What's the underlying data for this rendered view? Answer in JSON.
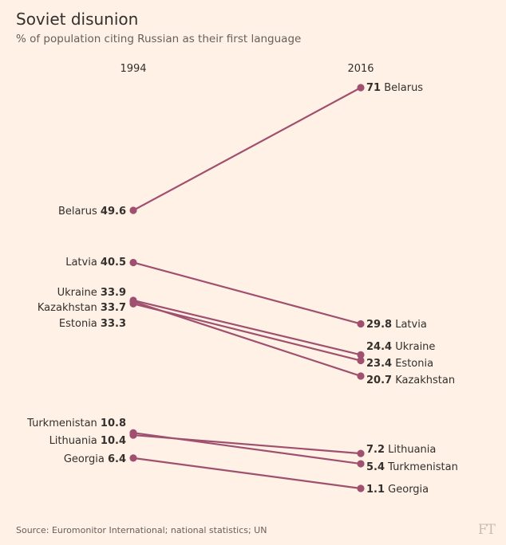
{
  "title": "Soviet disunion",
  "subtitle": "% of population citing Russian as their first language",
  "source": "Source: Euromonitor International; national statistics; UN",
  "logo": "FT",
  "colors": {
    "background": "#fff1e5",
    "line": "#a0506f",
    "text": "#33302e"
  },
  "chart_data": {
    "type": "line",
    "subtype": "slope",
    "x": [
      "1994",
      "2016"
    ],
    "series": [
      {
        "name": "Belarus",
        "values": [
          49.6,
          71
        ]
      },
      {
        "name": "Latvia",
        "values": [
          40.5,
          29.8
        ]
      },
      {
        "name": "Ukraine",
        "values": [
          33.9,
          24.4
        ]
      },
      {
        "name": "Kazakhstan",
        "values": [
          33.7,
          20.7
        ]
      },
      {
        "name": "Estonia",
        "values": [
          33.3,
          23.4
        ]
      },
      {
        "name": "Turkmenistan",
        "values": [
          10.8,
          5.4
        ]
      },
      {
        "name": "Lithuania",
        "values": [
          10.4,
          7.2
        ]
      },
      {
        "name": "Georgia",
        "values": [
          6.4,
          1.1
        ]
      }
    ],
    "left_labels": [
      {
        "series": "Belarus",
        "text": "Belarus",
        "value": "49.6"
      },
      {
        "series": "Latvia",
        "text": "Latvia",
        "value": "40.5"
      },
      {
        "series": "Ukraine",
        "text": "Ukraine",
        "value": "33.9"
      },
      {
        "series": "Kazakhstan",
        "text": "Kazakhstan",
        "value": "33.7"
      },
      {
        "series": "Estonia",
        "text": "Estonia",
        "value": "33.3"
      },
      {
        "series": "Turkmenistan",
        "text": "Turkmenistan",
        "value": "10.8"
      },
      {
        "series": "Lithuania",
        "text": "Lithuania",
        "value": "10.4"
      },
      {
        "series": "Georgia",
        "text": "Georgia",
        "value": "6.4"
      }
    ],
    "right_labels": [
      {
        "series": "Belarus",
        "text": "Belarus",
        "value": "71"
      },
      {
        "series": "Latvia",
        "text": "Latvia",
        "value": "29.8"
      },
      {
        "series": "Ukraine",
        "text": "Ukraine",
        "value": "24.4"
      },
      {
        "series": "Estonia",
        "text": "Estonia",
        "value": "23.4"
      },
      {
        "series": "Kazakhstan",
        "text": "Kazakhstan",
        "value": "20.7"
      },
      {
        "series": "Lithuania",
        "text": "Lithuania",
        "value": "7.2"
      },
      {
        "series": "Turkmenistan",
        "text": "Turkmenistan",
        "value": "5.4"
      },
      {
        "series": "Georgia",
        "text": "Georgia",
        "value": "1.1"
      }
    ],
    "grid": false
  }
}
